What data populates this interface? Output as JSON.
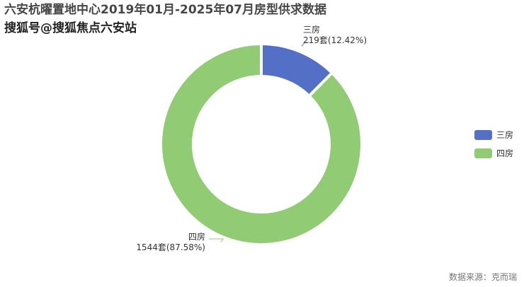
{
  "title": "六安杭曜置地中心2019年01月-2025年07月房型供求数据",
  "watermark": "搜狐号@搜狐焦点六安站",
  "source": "数据来源：克而瑞",
  "chart_data": {
    "type": "pie",
    "donut": true,
    "title": "六安杭曜置地中心2019年01月-2025年07月房型供求数据",
    "legend_position": "right",
    "slices": [
      {
        "name": "三房",
        "value": 219,
        "unit": "套",
        "percent": "12.42%",
        "color": "#5470c6",
        "label": "219套(12.42%)"
      },
      {
        "name": "四房",
        "value": 1544,
        "unit": "套",
        "percent": "87.58%",
        "color": "#91cc75",
        "label": "1544套(87.58%)"
      }
    ]
  }
}
